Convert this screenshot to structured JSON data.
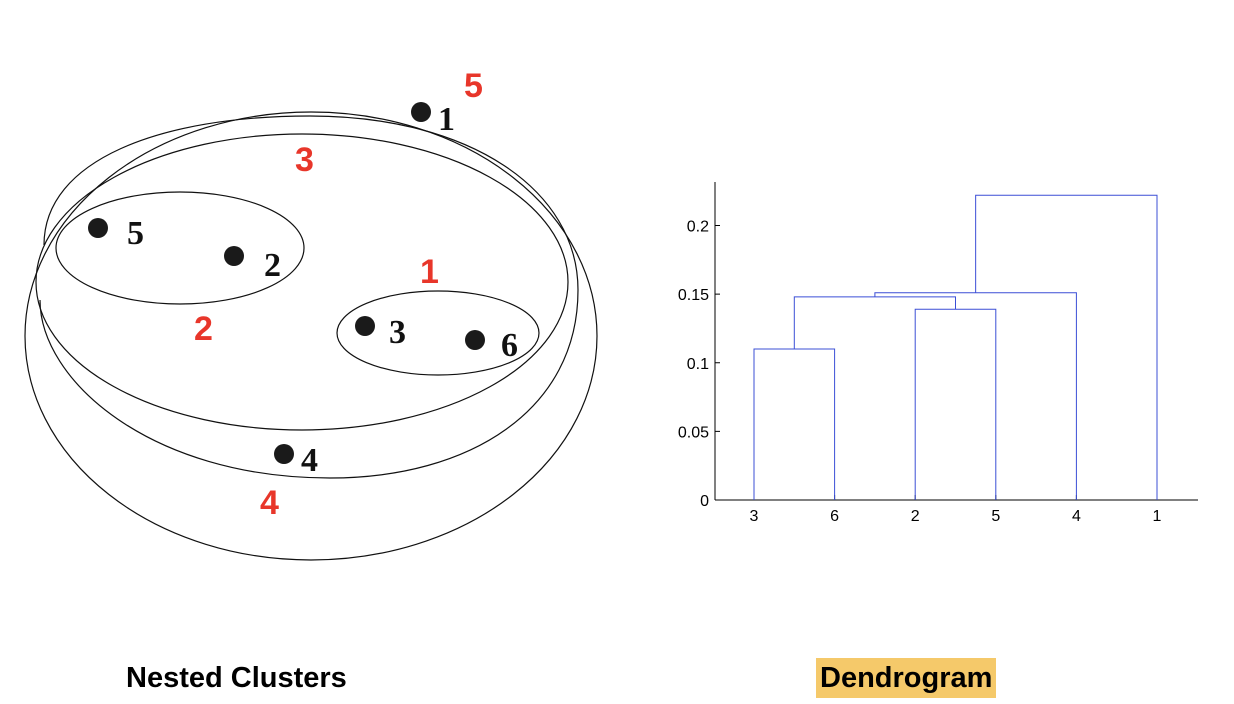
{
  "colors": {
    "cluster_label": "#e8362a",
    "dendrogram_line": "#3b4fd6",
    "caption_highlight": "#f5c96a",
    "point": "#1a1a1a",
    "outline": "#111111"
  },
  "nested_clusters": {
    "caption": "Nested Clusters",
    "points": [
      {
        "label": "1"
      },
      {
        "label": "2"
      },
      {
        "label": "3"
      },
      {
        "label": "4"
      },
      {
        "label": "5"
      },
      {
        "label": "6"
      }
    ],
    "cluster_labels": [
      "1",
      "2",
      "3",
      "4",
      "5"
    ]
  },
  "dendrogram": {
    "caption": "Dendrogram"
  },
  "chart_data": {
    "type": "dendrogram",
    "title": "",
    "xlabel": "",
    "ylabel": "",
    "leaf_order": [
      "3",
      "6",
      "2",
      "5",
      "4",
      "1"
    ],
    "y_ticks": [
      "0",
      "0.05",
      "0.1",
      "0.15",
      "0.2"
    ],
    "ylim": [
      0,
      0.23
    ],
    "merges": [
      {
        "cluster": "1",
        "members": [
          "3",
          "6"
        ],
        "height": 0.11
      },
      {
        "cluster": "2",
        "members": [
          "2",
          "5"
        ],
        "height": 0.139
      },
      {
        "cluster": "3",
        "members": [
          "3",
          "6",
          "2",
          "5"
        ],
        "height": 0.148
      },
      {
        "cluster": "4",
        "members": [
          "3",
          "6",
          "2",
          "5",
          "4"
        ],
        "height": 0.151
      },
      {
        "cluster": "5",
        "members": [
          "3",
          "6",
          "2",
          "5",
          "4",
          "1"
        ],
        "height": 0.222
      }
    ]
  }
}
